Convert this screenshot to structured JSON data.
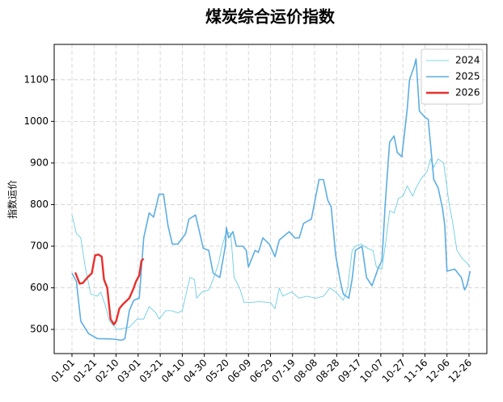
{
  "chart_data": {
    "type": "line",
    "title": "煤炭综合运价指数",
    "y_label": "指数运价",
    "ylim": [
      442,
      1185
    ],
    "yticks": [
      500,
      600,
      700,
      800,
      900,
      1000,
      1100
    ],
    "xticks": [
      "01-01",
      "01-21",
      "02-10",
      "03-01",
      "03-21",
      "04-10",
      "04-30",
      "05-20",
      "06-09",
      "06-29",
      "07-19",
      "08-08",
      "08-28",
      "09-17",
      "10-07",
      "10-27",
      "11-16",
      "12-06",
      "12-26"
    ],
    "grid": true,
    "legend": "upper right",
    "series": [
      {
        "name": "2024",
        "color": "#5bc8e0",
        "width": 0.8,
        "x": [
          "01-01",
          "01-05",
          "01-09",
          "01-13",
          "01-18",
          "01-24",
          "01-27",
          "01-31",
          "02-04",
          "02-11",
          "02-22",
          "02-29",
          "03-06",
          "03-11",
          "03-17",
          "03-20",
          "03-26",
          "03-31",
          "04-06",
          "04-10",
          "04-13",
          "04-17",
          "04-21",
          "04-23",
          "04-28",
          "05-04",
          "05-08",
          "05-13",
          "05-16",
          "05-20",
          "05-24",
          "05-27",
          "06-01",
          "06-05",
          "06-11",
          "06-18",
          "06-29",
          "07-03",
          "07-07",
          "07-10",
          "07-18",
          "07-25",
          "08-01",
          "08-09",
          "08-16",
          "08-22",
          "08-27",
          "09-03",
          "09-07",
          "09-11",
          "09-14",
          "09-19",
          "09-25",
          "09-30",
          "10-03",
          "10-08",
          "10-12",
          "10-15",
          "10-19",
          "10-23",
          "10-27",
          "10-31",
          "11-05",
          "11-07",
          "11-12",
          "11-18",
          "11-21",
          "11-24",
          "11-28",
          "12-03",
          "12-08",
          "12-11",
          "12-15",
          "12-20",
          "12-24",
          "12-27"
        ],
        "values": [
          775,
          730,
          720,
          650,
          585,
          580,
          590,
          560,
          520,
          500,
          505,
          525,
          525,
          555,
          540,
          525,
          545,
          545,
          540,
          545,
          580,
          625,
          620,
          575,
          590,
          595,
          620,
          660,
          700,
          735,
          730,
          625,
          600,
          565,
          565,
          567,
          565,
          550,
          600,
          580,
          590,
          575,
          580,
          575,
          580,
          600,
          590,
          570,
          600,
          690,
          700,
          705,
          695,
          690,
          650,
          645,
          720,
          785,
          780,
          815,
          820,
          845,
          820,
          835,
          860,
          880,
          910,
          890,
          910,
          900,
          800,
          760,
          690,
          670,
          660,
          650
        ]
      },
      {
        "name": "2025",
        "color": "#5dade2",
        "width": 1.6,
        "x": [
          "01-01",
          "01-05",
          "01-09",
          "01-16",
          "01-24",
          "02-07",
          "02-15",
          "02-18",
          "02-22",
          "02-26",
          "03-02",
          "03-06",
          "03-11",
          "03-15",
          "03-20",
          "03-24",
          "03-28",
          "04-01",
          "04-06",
          "04-13",
          "04-16",
          "04-22",
          "04-26",
          "04-29",
          "05-04",
          "05-08",
          "05-14",
          "05-19",
          "05-20",
          "05-22",
          "05-26",
          "05-29",
          "06-04",
          "06-07",
          "06-09",
          "06-15",
          "06-18",
          "06-22",
          "06-28",
          "07-03",
          "07-07",
          "07-16",
          "07-21",
          "07-25",
          "07-29",
          "08-05",
          "08-12",
          "08-16",
          "08-20",
          "08-23",
          "08-27",
          "08-31",
          "09-03",
          "09-08",
          "09-11",
          "09-14",
          "09-20",
          "09-24",
          "09-29",
          "10-05",
          "10-08",
          "10-11",
          "10-15",
          "10-19",
          "10-22",
          "10-26",
          "10-28",
          "10-31",
          "11-02",
          "11-06",
          "11-08",
          "11-11",
          "11-16",
          "11-19",
          "11-24",
          "11-28",
          "12-02",
          "12-04",
          "12-06",
          "12-13",
          "12-19",
          "12-22",
          "12-24",
          "12-27"
        ],
        "values": [
          635,
          615,
          520,
          490,
          478,
          477,
          474,
          478,
          545,
          570,
          575,
          720,
          780,
          770,
          825,
          825,
          750,
          705,
          705,
          730,
          765,
          775,
          730,
          695,
          690,
          635,
          625,
          700,
          745,
          720,
          735,
          700,
          700,
          690,
          650,
          690,
          685,
          720,
          705,
          675,
          715,
          735,
          720,
          720,
          755,
          765,
          860,
          860,
          810,
          795,
          680,
          620,
          585,
          575,
          620,
          690,
          700,
          625,
          605,
          650,
          665,
          800,
          950,
          965,
          925,
          915,
          960,
          1030,
          1100,
          1130,
          1150,
          1025,
          1010,
          1005,
          860,
          840,
          790,
          750,
          640,
          645,
          625,
          595,
          605,
          640
        ]
      },
      {
        "name": "2026",
        "color": "#e8302c",
        "width": 2.4,
        "x": [
          "01-04",
          "01-08",
          "01-11",
          "01-15",
          "01-19",
          "01-22",
          "01-25",
          "01-28",
          "01-30",
          "02-02",
          "02-05",
          "02-08",
          "02-10",
          "02-13",
          "02-16",
          "02-22",
          "02-26",
          "02-28",
          "03-02",
          "03-04",
          "03-06"
        ],
        "values": [
          637,
          610,
          612,
          625,
          635,
          678,
          680,
          675,
          620,
          600,
          525,
          512,
          520,
          550,
          560,
          575,
          600,
          615,
          630,
          665,
          670
        ]
      }
    ]
  }
}
